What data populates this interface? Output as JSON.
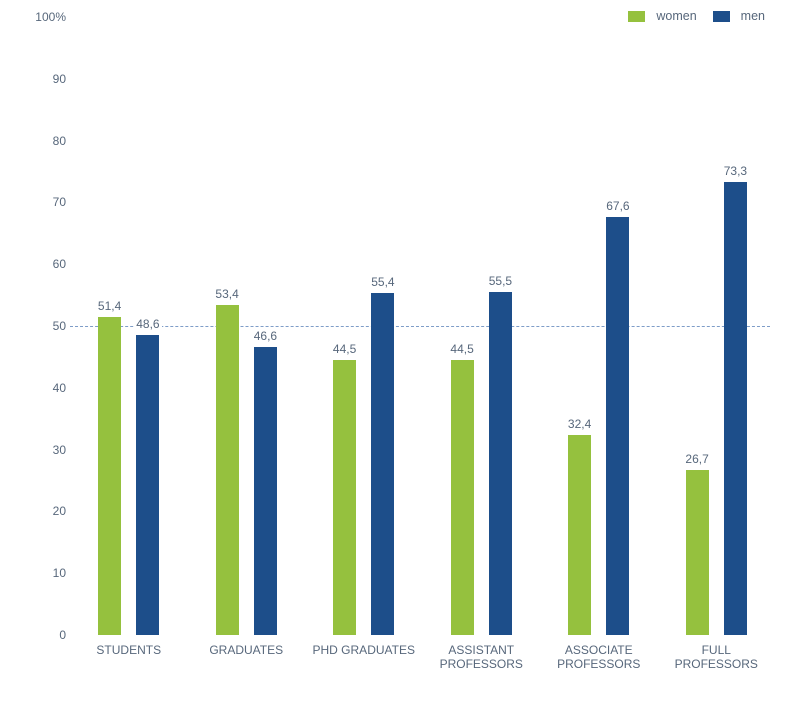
{
  "chart_data": {
    "type": "bar",
    "title": "",
    "categories": [
      "STUDENTS",
      "GRADUATES",
      "PHD GRADUATES",
      "ASSISTANT PROFESSORS",
      "ASSOCIATE PROFESSORS",
      "FULL PROFESSORS"
    ],
    "series": [
      {
        "name": "women",
        "color": "#95C13E",
        "values": [
          51.4,
          53.4,
          44.5,
          44.5,
          32.4,
          26.7
        ],
        "labels": [
          "51,4",
          "53,4",
          "44,5",
          "44,5",
          "32,4",
          "26,7"
        ]
      },
      {
        "name": "men",
        "color": "#1D4E8A",
        "values": [
          48.6,
          46.6,
          55.4,
          55.5,
          67.6,
          73.3
        ],
        "labels": [
          "48,6",
          "46,6",
          "55,4",
          "55,5",
          "67,6",
          "73,3"
        ]
      }
    ],
    "y_axis": {
      "min": 0,
      "max": 100,
      "tick_step": 10,
      "tick_labels": [
        "100%",
        "90",
        "80",
        "70",
        "60",
        "50",
        "40",
        "30",
        "20",
        "10",
        "0"
      ]
    },
    "reference_line": {
      "value": 50,
      "style": "dashed",
      "color": "#7E9DC8"
    },
    "legend": {
      "position": "top-right",
      "entries": [
        "women",
        "men"
      ]
    },
    "grid": false,
    "xlabel": "",
    "ylabel": ""
  },
  "colors": {
    "background": "#FFFFFF",
    "label_text": "#57677B"
  }
}
